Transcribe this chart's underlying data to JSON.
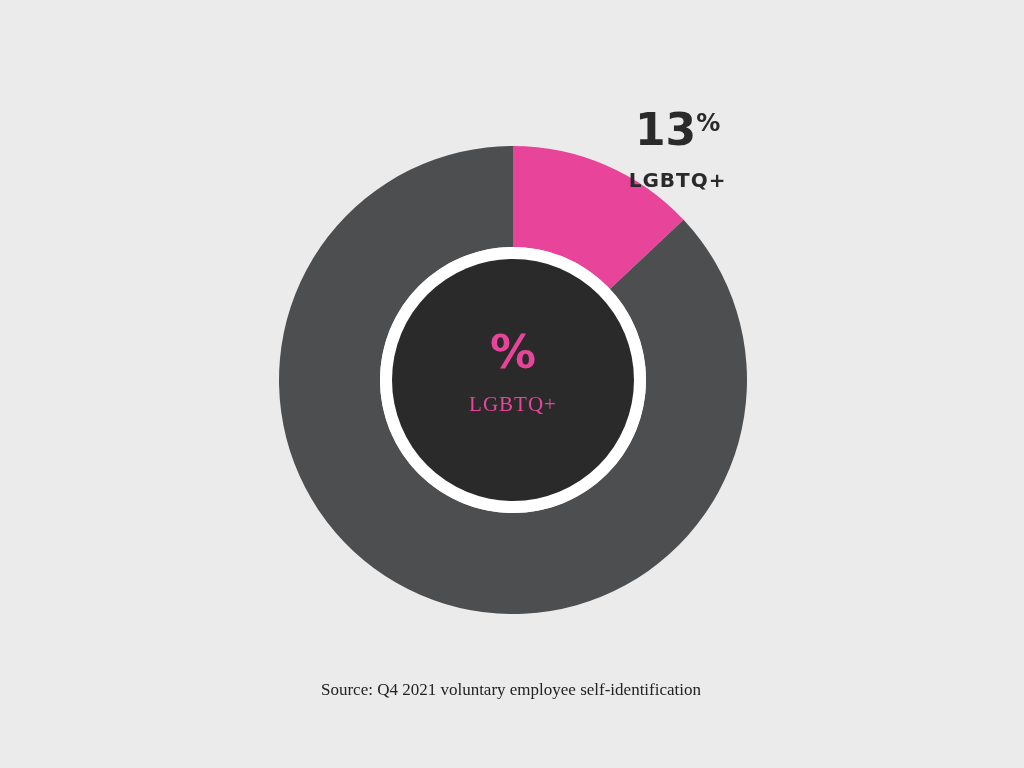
{
  "chart_data": {
    "type": "donut",
    "title": "%",
    "subtitle": "LGBTQ+",
    "categories": [
      "LGBTQ+",
      null
    ],
    "values": [
      13,
      87
    ],
    "colors": [
      "#e8459a",
      "#4d4e50"
    ],
    "value_labels": [
      "13$^{%}$",
      null
    ],
    "annotations": [
      "Source: Q4 2021 voluntary employee self-identification"
    ]
  }
}
